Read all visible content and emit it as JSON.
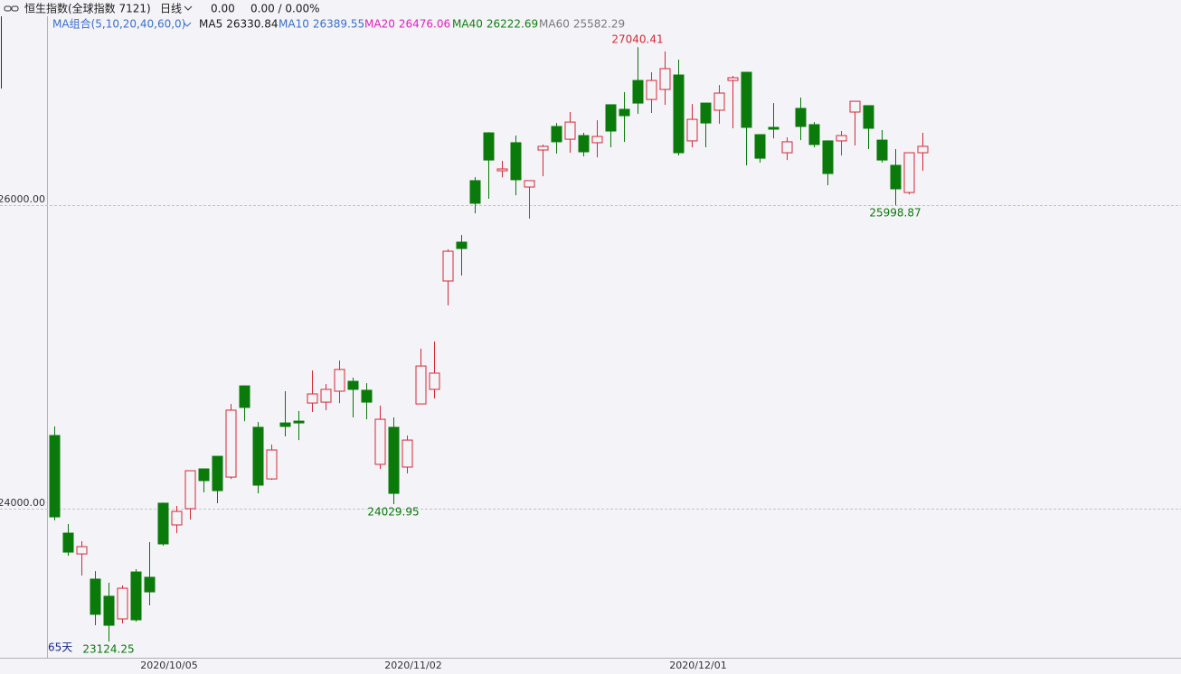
{
  "header": {
    "title": "恒生指数(全球指数 7121)",
    "period": "日线",
    "change": "0.00",
    "change_pct": "0.00 / 0.00%"
  },
  "chart_data": {
    "type": "candlestick",
    "ma_legend": {
      "label": "MA组合(5,10,20,40,60,0)",
      "items": [
        {
          "name": "MA5",
          "value": 26330.84,
          "color": "#1a1a1a"
        },
        {
          "name": "MA10",
          "value": 26389.55,
          "color": "#3a6fd0"
        },
        {
          "name": "MA20",
          "value": 26476.06,
          "color": "#e020c0"
        },
        {
          "name": "MA40",
          "value": 26222.69,
          "color": "#108010"
        },
        {
          "name": "MA60",
          "value": 25582.29,
          "color": "#7a7a7a"
        }
      ]
    },
    "period_label": "65天",
    "categories": [
      null,
      null,
      null,
      null,
      null,
      null,
      null,
      null,
      "2020/10/05",
      null,
      null,
      null,
      null,
      null,
      null,
      null,
      null,
      null,
      null,
      null,
      null,
      null,
      null,
      null,
      null,
      null,
      "2020/11/02",
      null,
      null,
      null,
      null,
      null,
      null,
      null,
      null,
      null,
      null,
      null,
      null,
      null,
      null,
      null,
      null,
      null,
      null,
      null,
      null,
      "2020/12/01",
      null,
      null,
      null,
      null,
      null,
      null,
      null,
      null,
      null,
      null,
      null,
      null,
      null,
      null,
      null,
      null,
      null
    ],
    "open": [
      24482,
      23839,
      23702,
      23536,
      23423,
      23274,
      23583,
      23548,
      24036,
      23893,
      24000,
      24262,
      24345,
      24208,
      24809,
      24536,
      24196,
      24565,
      24577,
      24696,
      24702,
      24774,
      24839,
      24780,
      24292,
      24536,
      24274,
      24690,
      24786,
      25500,
      25756,
      26161,
      26476,
      26226,
      26411,
      26119,
      26363,
      26518,
      26434,
      26458,
      26411,
      26661,
      26631,
      26821,
      26696,
      26762,
      26857,
      26423,
      26672,
      26625,
      26821,
      26875,
      26464,
      26512,
      26345,
      26637,
      26530,
      26423,
      26423,
      26613,
      26655,
      26428,
      26262,
      26083,
      26345
    ],
    "high": [
      24542,
      23899,
      23786,
      23589,
      23512,
      23494,
      23601,
      23780,
      24040,
      24018,
      24252,
      24265,
      24348,
      24690,
      24812,
      24571,
      24423,
      24774,
      24643,
      24911,
      24821,
      24976,
      24863,
      24827,
      24679,
      24601,
      24482,
      25054,
      25101,
      25708,
      25803,
      26184,
      26480,
      26292,
      26458,
      26163,
      26399,
      26541,
      26613,
      26476,
      26559,
      26664,
      26744,
      27040.41,
      26875,
      27012,
      26958,
      26666,
      26675,
      26791,
      26851,
      26878,
      26467,
      26672,
      26446,
      26708,
      26547,
      26426,
      26488,
      26686,
      26658,
      26494,
      26369,
      26348,
      26476
    ],
    "low": [
      23923,
      23690,
      23560,
      23232,
      23124.25,
      23244,
      23256,
      23363,
      23756,
      23839,
      23929,
      24107,
      24036,
      24196,
      24577,
      24101,
      24190,
      24476,
      24452,
      24637,
      24649,
      24696,
      24601,
      24589,
      24262,
      24029.95,
      24232,
      24688,
      24726,
      25339,
      25536,
      25946,
      26042,
      26184,
      26065,
      25911,
      26190,
      26339,
      26345,
      26321,
      26315,
      26381,
      26417,
      26601,
      26607,
      26661,
      26327,
      26381,
      26381,
      26536,
      26506,
      26262,
      26280,
      26440,
      26297,
      26428,
      26381,
      26131,
      26327,
      26393,
      26369,
      26280,
      25998.87,
      26071,
      26226
    ],
    "close": [
      23946,
      23714,
      23750,
      23304,
      23232,
      23476,
      23268,
      23452,
      23768,
      23982,
      24250,
      24185,
      24119,
      24649,
      24667,
      24155,
      24387,
      24542,
      24565,
      24756,
      24786,
      24917,
      24786,
      24702,
      24589,
      24101,
      24452,
      24940,
      24893,
      25696,
      25714,
      26012,
      26297,
      26238,
      26167,
      26161,
      26387,
      26417,
      26547,
      26351,
      26452,
      26488,
      26589,
      26672,
      26821,
      26899,
      26345,
      26565,
      26541,
      26738,
      26839,
      26512,
      26309,
      26500,
      26417,
      26518,
      26399,
      26208,
      26458,
      26684,
      26506,
      26297,
      26107,
      26345,
      26387
    ],
    "up_color": "#d42a35",
    "down_color": "#0a7a0a",
    "ylim": [
      23018,
      27244
    ],
    "yticks": [
      {
        "value": 24000,
        "label": "24000.00"
      },
      {
        "value": 26000,
        "label": "26000.00"
      }
    ],
    "grid": true
  }
}
